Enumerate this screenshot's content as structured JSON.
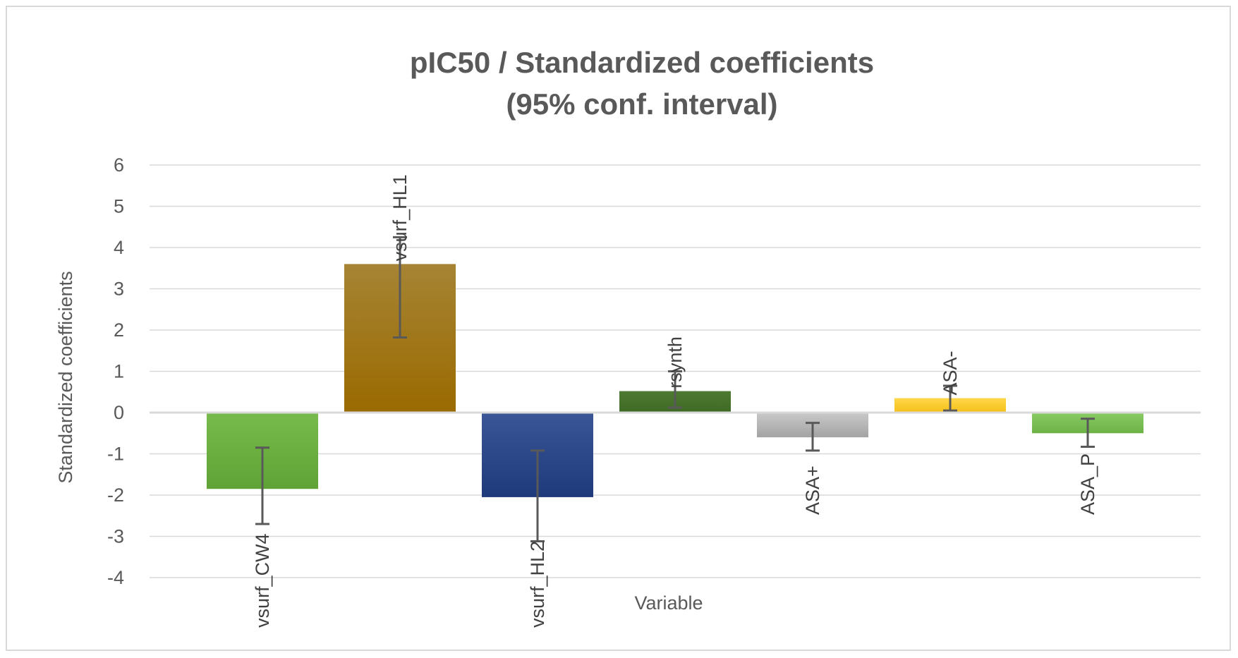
{
  "chart_data": {
    "type": "bar",
    "title_lines": [
      "pIC50 / Standardized coefficients",
      "(95% conf. interval)"
    ],
    "xlabel": "Variable",
    "ylabel": "Standardized coefficients",
    "ylim": [
      -4,
      6
    ],
    "yticks": [
      6,
      5,
      4,
      3,
      2,
      1,
      0,
      -1,
      -2,
      -3,
      -4
    ],
    "grid": true,
    "legend": "none",
    "categories": [
      "vsurf_CW4",
      "vsurf_HL1",
      "vsurf_HL2",
      "rsynth",
      "ASA+",
      "ASA-",
      "ASA_P"
    ],
    "values": [
      -1.85,
      3.6,
      -2.05,
      0.52,
      -0.6,
      0.35,
      -0.5
    ],
    "error_low": [
      -2.7,
      1.82,
      -3.12,
      0.12,
      -0.92,
      0.05,
      -0.83
    ],
    "error_high": [
      -0.85,
      4.25,
      -0.92,
      1.0,
      -0.25,
      0.65,
      -0.15
    ],
    "colors": [
      [
        "#77bb4c",
        "#5fa336"
      ],
      [
        "#a68434",
        "#9a6a00"
      ],
      [
        "#3a5696",
        "#1f3a7a"
      ],
      [
        "#4d7a32",
        "#3f6a25"
      ],
      [
        "#c9c9c9",
        "#a3a3a3"
      ],
      [
        "#ffd84a",
        "#f5bf19"
      ],
      [
        "#8acb66",
        "#6cb246"
      ]
    ]
  }
}
